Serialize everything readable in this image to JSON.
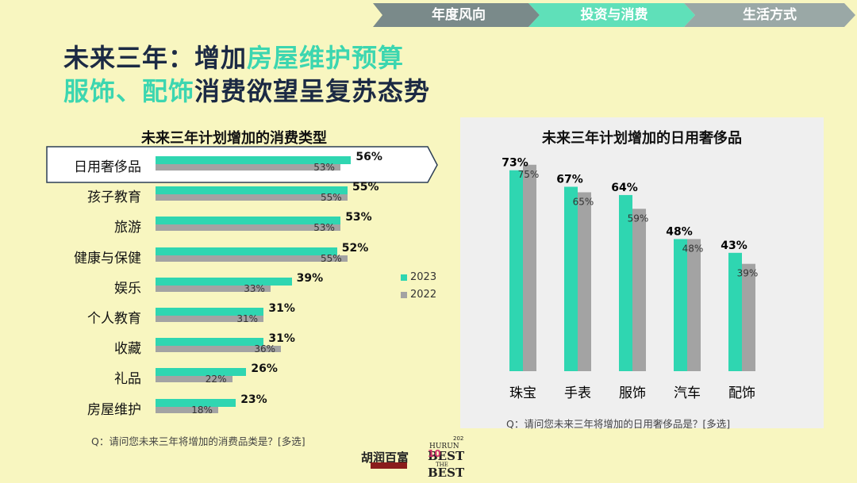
{
  "nav": {
    "items": [
      "年度风向",
      "投资与消费",
      "生活方式"
    ]
  },
  "title": {
    "line1_pre": "未来三年：增加",
    "line1_hl": "房屋维护预算",
    "line2_hl": "服饰、配饰",
    "line2_post": "消费欲望呈复苏态势"
  },
  "colors": {
    "y2023": "#2fd6b1",
    "y2022": "#a3a3a3",
    "highlight": "#3cd6b0",
    "title": "#1c2a44"
  },
  "legend": {
    "s2023": "2023",
    "s2022": "2022"
  },
  "left_note": "Q：请问您未来三年将增加的消费品类是？[多选]",
  "right_note": "Q：请问您未来三年将增加的日用奢侈品是？[多选]",
  "logo": {
    "text": "胡润百富",
    "badge_year": "2023",
    "badge_text": "HURUN BEST OF THE BEST"
  },
  "chart_data": [
    {
      "type": "bar",
      "orientation": "horizontal",
      "title": "未来三年计划增加的消费类型",
      "categories": [
        "日用奢侈品",
        "孩子教育",
        "旅游",
        "健康与保健",
        "娱乐",
        "个人教育",
        "收藏",
        "礼品",
        "房屋维护"
      ],
      "series": [
        {
          "name": "2023",
          "values": [
            56,
            55,
            53,
            52,
            39,
            31,
            31,
            26,
            23
          ],
          "labels": [
            "56%",
            "55%",
            "53%",
            "52%",
            "39%",
            "31%",
            "31%",
            "26%",
            "23%"
          ]
        },
        {
          "name": "2022",
          "values": [
            53,
            55,
            53,
            55,
            33,
            31,
            36,
            22,
            18
          ],
          "labels": [
            "53%",
            "55%",
            "53%",
            "55%",
            "33%",
            "31%",
            "36%",
            "22%",
            "18%"
          ]
        }
      ],
      "xlim": [
        0,
        100
      ],
      "highlighted_category": "日用奢侈品",
      "legend_position": "right"
    },
    {
      "type": "bar",
      "orientation": "vertical",
      "title": "未来三年计划增加的日用奢侈品",
      "categories": [
        "珠宝",
        "手表",
        "服饰",
        "汽车",
        "配饰"
      ],
      "series": [
        {
          "name": "2023",
          "values": [
            73,
            67,
            64,
            48,
            43
          ],
          "labels": [
            "73%",
            "67%",
            "64%",
            "48%",
            "43%"
          ]
        },
        {
          "name": "2022",
          "values": [
            75,
            65,
            59,
            48,
            39
          ],
          "labels": [
            "75%",
            "65%",
            "59%",
            "48%",
            "39%"
          ]
        }
      ],
      "ylim": [
        0,
        100
      ]
    }
  ]
}
